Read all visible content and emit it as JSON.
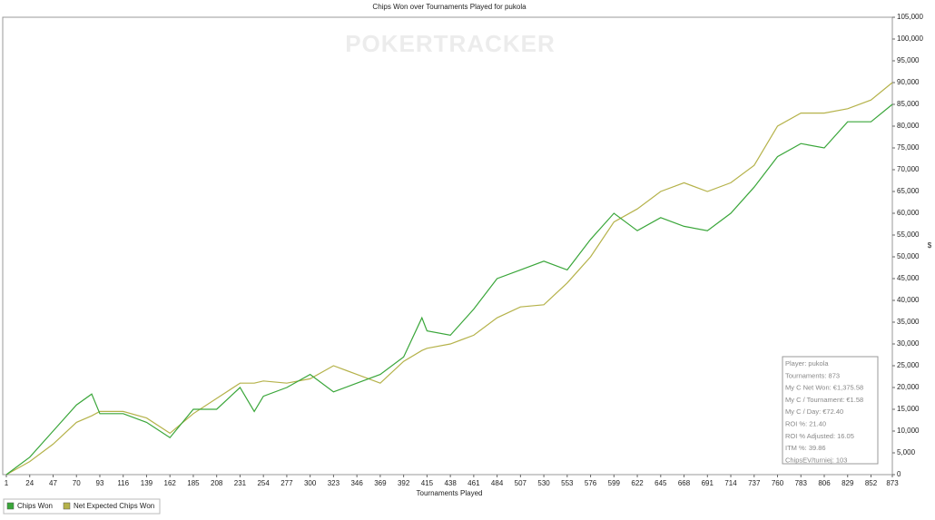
{
  "chart_data": {
    "type": "line",
    "title": "Chips Won over Tournaments Played for pukola",
    "watermark": "POKERTRACKER",
    "x_label": "Tournaments Played",
    "y_label": "$",
    "x": [
      1,
      24,
      47,
      70,
      85,
      93,
      116,
      139,
      162,
      185,
      208,
      231,
      245,
      254,
      277,
      300,
      323,
      346,
      369,
      392,
      410,
      415,
      438,
      461,
      484,
      507,
      530,
      553,
      576,
      599,
      622,
      645,
      668,
      691,
      714,
      737,
      760,
      783,
      806,
      829,
      852,
      873
    ],
    "series": [
      {
        "name": "Chips Won",
        "color": "#3aa63a",
        "values": [
          0,
          4000,
          10000,
          16000,
          18500,
          14000,
          14000,
          12000,
          8500,
          15000,
          15000,
          20000,
          14500,
          18000,
          20000,
          23000,
          19000,
          21000,
          23000,
          27000,
          36000,
          33000,
          32000,
          38000,
          45000,
          47000,
          49000,
          47000,
          54000,
          60000,
          56000,
          59000,
          57000,
          56000,
          60000,
          66000,
          73000,
          76000,
          75000,
          81000,
          81000,
          85000
        ]
      },
      {
        "name": "Net Expected Chips Won",
        "color": "#b5b24a",
        "values": [
          0,
          3000,
          7000,
          12000,
          13500,
          14500,
          14500,
          13000,
          9500,
          14000,
          17500,
          21000,
          21000,
          21500,
          21000,
          22000,
          25000,
          23000,
          21000,
          26000,
          28500,
          29000,
          30000,
          32000,
          36000,
          38500,
          39000,
          44000,
          50000,
          58000,
          61000,
          65000,
          67000,
          65000,
          67000,
          71000,
          80000,
          83000,
          83000,
          84000,
          86000,
          90000
        ]
      }
    ],
    "xlim": [
      1,
      873
    ],
    "xticks": [
      1,
      24,
      47,
      70,
      93,
      116,
      139,
      162,
      185,
      208,
      231,
      254,
      277,
      300,
      323,
      346,
      369,
      392,
      415,
      438,
      461,
      484,
      507,
      530,
      553,
      576,
      599,
      622,
      645,
      668,
      691,
      714,
      737,
      760,
      783,
      806,
      829,
      852,
      873
    ],
    "ylim": [
      0,
      105000
    ],
    "yticks": [
      0,
      {
        "value": 5000,
        "label": "5,000"
      },
      {
        "value": 10000,
        "label": "10,000"
      },
      {
        "value": 15000,
        "label": "15,000"
      },
      {
        "value": 20000,
        "label": "20,000"
      },
      {
        "value": 25000,
        "label": "25,000"
      },
      {
        "value": 30000,
        "label": "30,000"
      },
      {
        "value": 35000,
        "label": "35,000"
      },
      {
        "value": 40000,
        "label": "40,000"
      },
      {
        "value": 45000,
        "label": "45,000"
      },
      {
        "value": 50000,
        "label": "50,000"
      },
      {
        "value": 55000,
        "label": "55,000"
      },
      {
        "value": 60000,
        "label": "60,000"
      },
      {
        "value": 65000,
        "label": "65,000"
      },
      {
        "value": 70000,
        "label": "70,000"
      },
      {
        "value": 75000,
        "label": "75,000"
      },
      {
        "value": 80000,
        "label": "80,000"
      },
      {
        "value": 85000,
        "label": "85,000"
      },
      {
        "value": 90000,
        "label": "90,000"
      },
      {
        "value": 95000,
        "label": "95,000"
      },
      {
        "value": 100000,
        "label": "100,000"
      },
      {
        "value": 105000,
        "label": "105,000"
      }
    ],
    "stats": [
      "Player: pukola",
      "Tournaments: 873",
      "My C Net Won: €1,375.58",
      "My C / Tournament: €1.58",
      "My C / Day: €72.40",
      "ROI %: 21.40",
      "ROI % Adjusted: 16.05",
      "ITM %: 39.86",
      "ChipsEV/turniej: 103"
    ]
  }
}
